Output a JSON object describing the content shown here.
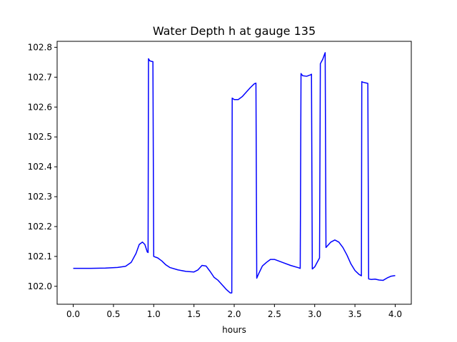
{
  "chart_data": {
    "type": "line",
    "title": "Water Depth h at gauge 135",
    "xlabel": "hours",
    "ylabel": "",
    "xlim": [
      -0.2,
      4.2
    ],
    "ylim": [
      101.94,
      102.82
    ],
    "xticks": [
      0.0,
      0.5,
      1.0,
      1.5,
      2.0,
      2.5,
      3.0,
      3.5,
      4.0
    ],
    "xtick_labels": [
      "0.0",
      "0.5",
      "1.0",
      "1.5",
      "2.0",
      "2.5",
      "3.0",
      "3.5",
      "4.0"
    ],
    "yticks": [
      102.0,
      102.1,
      102.2,
      102.3,
      102.4,
      102.5,
      102.6,
      102.7,
      102.8
    ],
    "ytick_labels": [
      "102.0",
      "102.1",
      "102.2",
      "102.3",
      "102.4",
      "102.5",
      "102.6",
      "102.7",
      "102.8"
    ],
    "grid": false,
    "series": [
      {
        "color": "#0000ff",
        "x": [
          0.0,
          0.2,
          0.4,
          0.55,
          0.65,
          0.72,
          0.78,
          0.82,
          0.86,
          0.89,
          0.92,
          0.93,
          0.935,
          0.95,
          0.97,
          0.99,
          1.0,
          1.05,
          1.1,
          1.15,
          1.2,
          1.3,
          1.4,
          1.5,
          1.55,
          1.6,
          1.65,
          1.7,
          1.75,
          1.8,
          1.85,
          1.9,
          1.95,
          1.97,
          1.975,
          2.0,
          2.05,
          2.1,
          2.15,
          2.2,
          2.25,
          2.27,
          2.28,
          2.3,
          2.35,
          2.4,
          2.45,
          2.5,
          2.55,
          2.6,
          2.7,
          2.8,
          2.82,
          2.83,
          2.85,
          2.9,
          2.95,
          2.96,
          2.97,
          3.0,
          3.05,
          3.06,
          3.07,
          3.1,
          3.12,
          3.13,
          3.14,
          3.2,
          3.25,
          3.3,
          3.35,
          3.4,
          3.45,
          3.5,
          3.55,
          3.58,
          3.585,
          3.6,
          3.63,
          3.65,
          3.66,
          3.67,
          3.7,
          3.75,
          3.8,
          3.85,
          3.9,
          3.95,
          4.0
        ],
        "y": [
          102.06,
          102.06,
          102.061,
          102.063,
          102.067,
          102.08,
          102.11,
          102.14,
          102.148,
          102.14,
          102.115,
          102.113,
          102.762,
          102.755,
          102.753,
          102.752,
          102.1,
          102.095,
          102.085,
          102.072,
          102.063,
          102.055,
          102.05,
          102.048,
          102.055,
          102.07,
          102.068,
          102.05,
          102.03,
          102.02,
          102.005,
          101.99,
          101.978,
          101.978,
          102.63,
          102.625,
          102.625,
          102.635,
          102.65,
          102.665,
          102.678,
          102.68,
          102.027,
          102.04,
          102.068,
          102.08,
          102.09,
          102.09,
          102.085,
          102.08,
          102.07,
          102.062,
          102.06,
          102.712,
          102.705,
          102.703,
          102.708,
          102.71,
          102.058,
          102.065,
          102.09,
          102.095,
          102.745,
          102.76,
          102.775,
          102.782,
          102.13,
          102.148,
          102.155,
          102.148,
          102.13,
          102.105,
          102.075,
          102.053,
          102.04,
          102.035,
          102.685,
          102.683,
          102.681,
          102.68,
          102.679,
          102.025,
          102.023,
          102.024,
          102.021,
          102.02,
          102.028,
          102.034,
          102.036
        ]
      }
    ]
  }
}
